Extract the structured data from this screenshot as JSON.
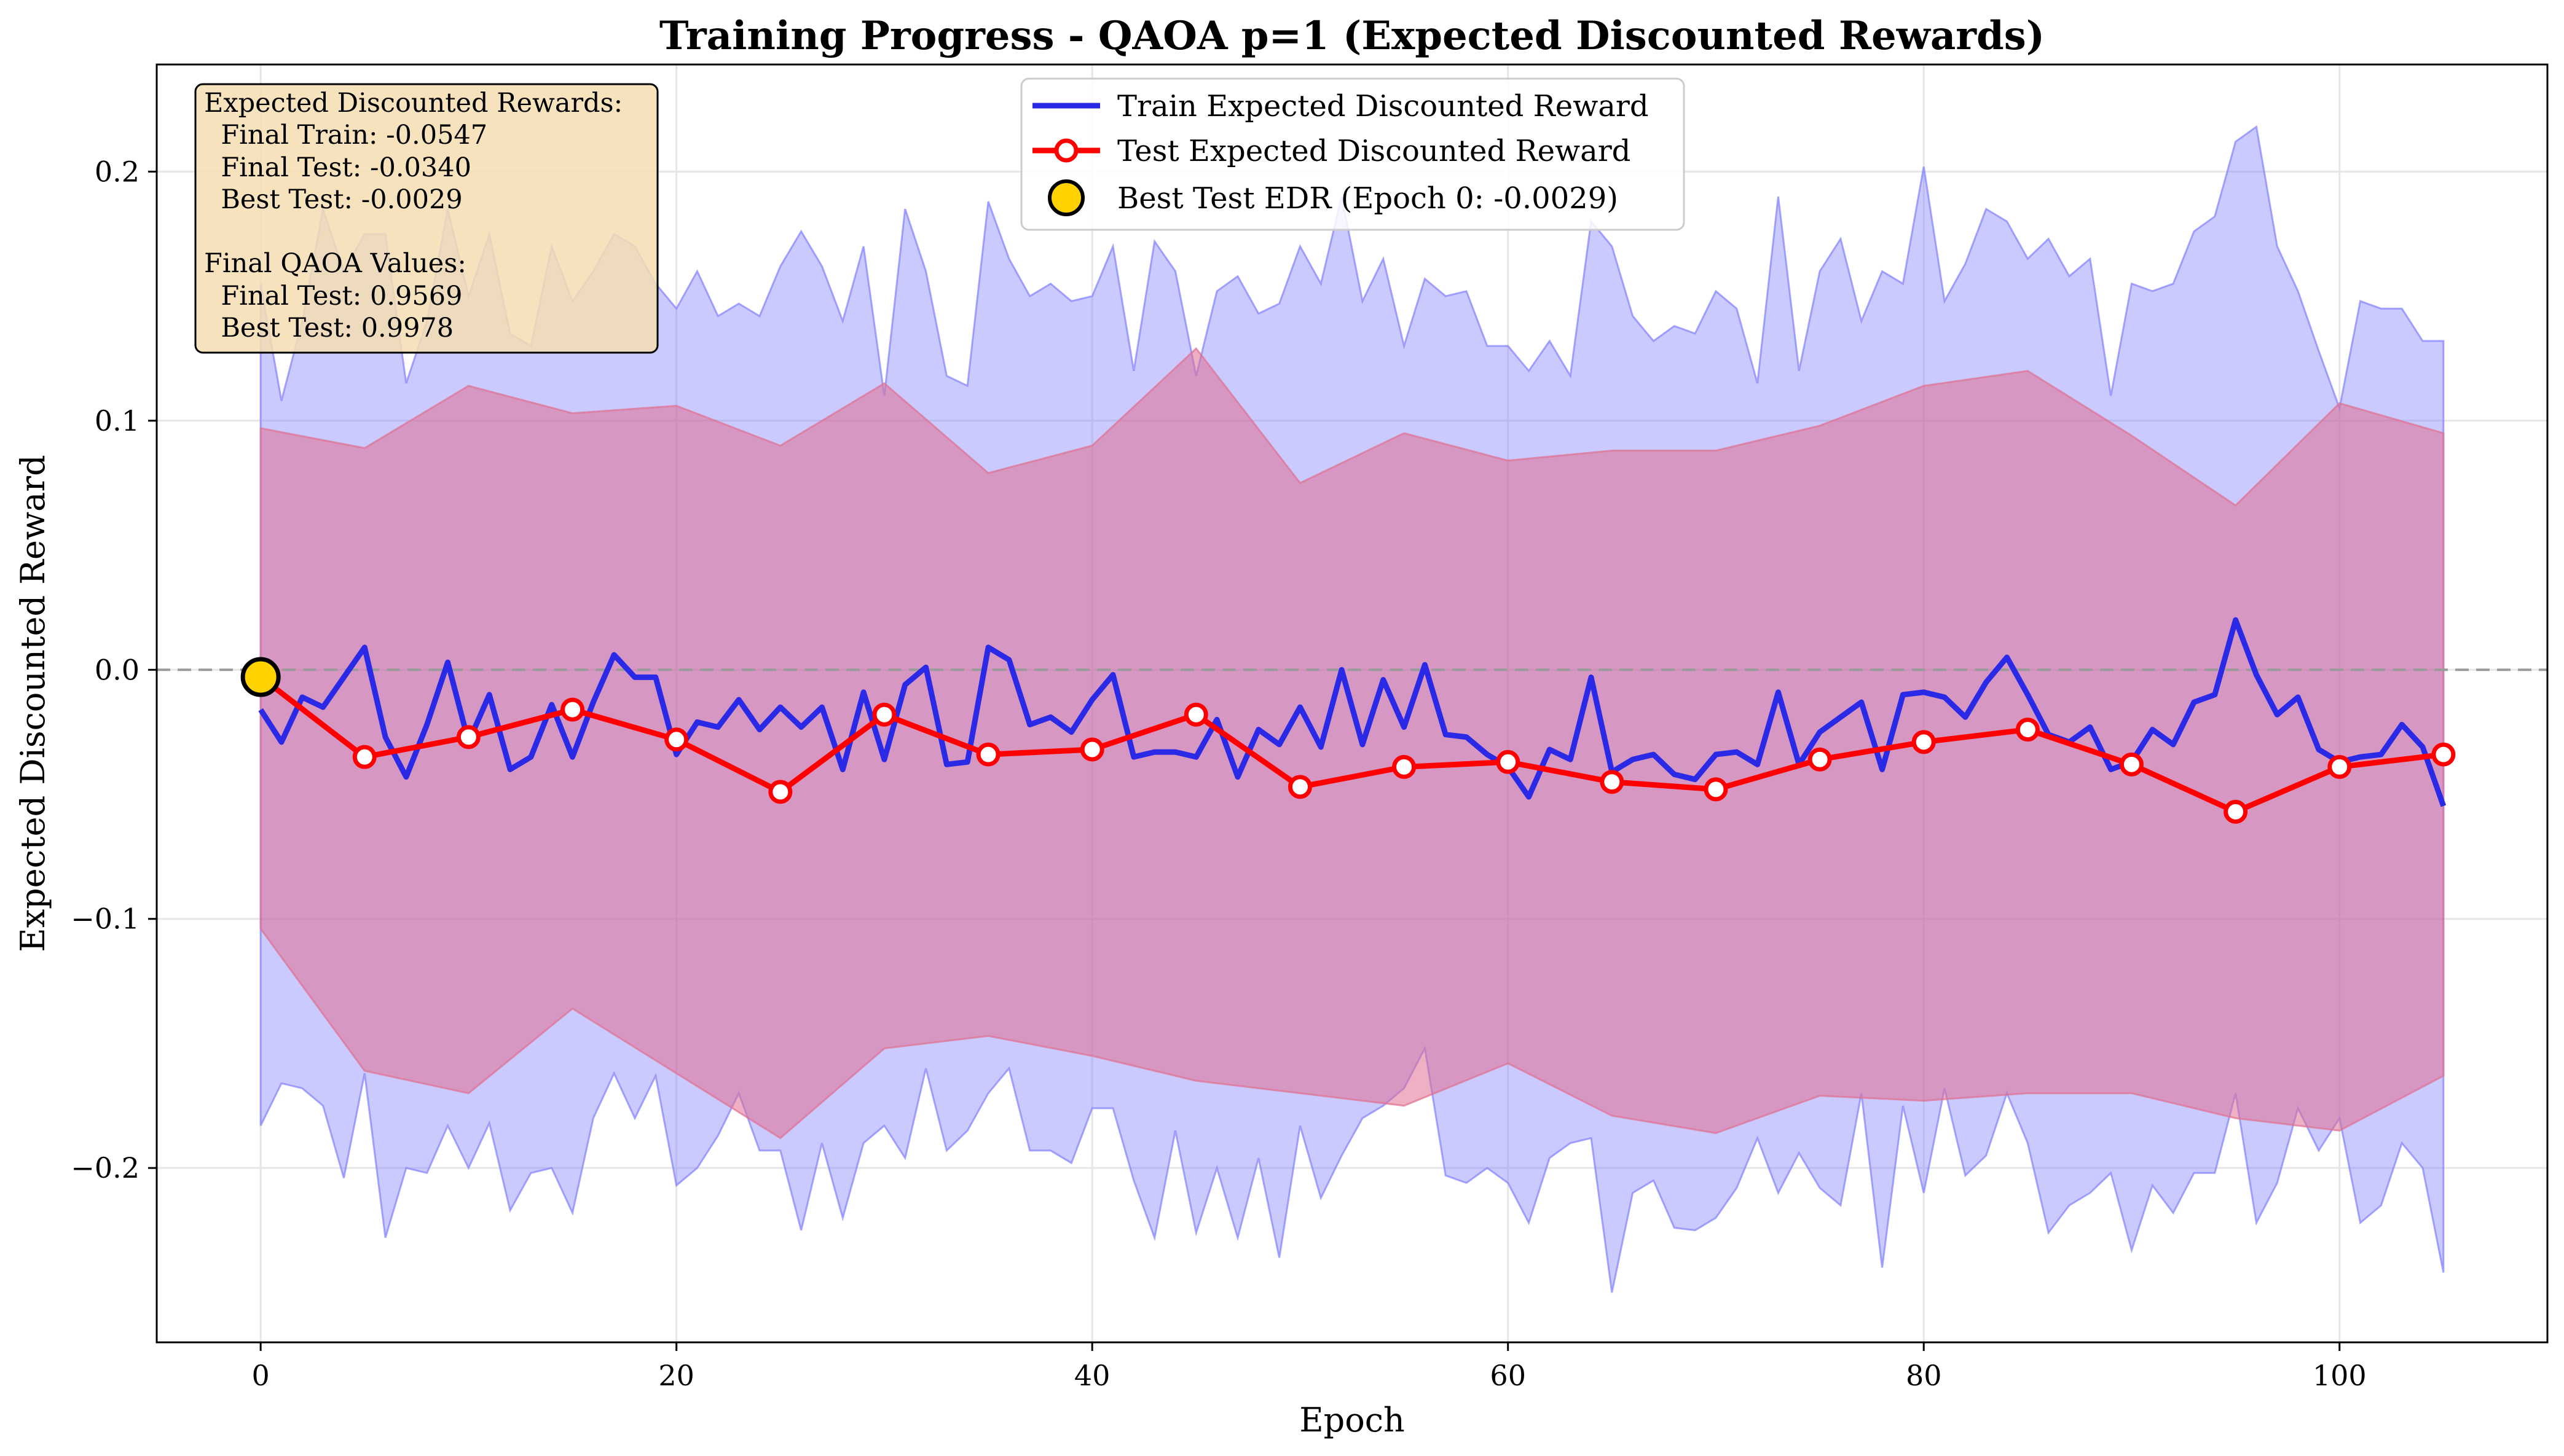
{
  "chart_data": {
    "type": "line",
    "title": "Training Progress - QAOA p=1 (Expected Discounted Rewards)",
    "xlabel": "Epoch",
    "ylabel": "Expected Discounted Reward",
    "xlim": [
      -5,
      110
    ],
    "ylim": [
      -0.27,
      0.243
    ],
    "xticks": [
      0,
      20,
      40,
      60,
      80,
      100
    ],
    "yticks": [
      -0.2,
      -0.1,
      0.0,
      0.1,
      0.2
    ],
    "ytick_labels": [
      "−0.2",
      "−0.1",
      "0.0",
      "0.1",
      "0.2"
    ],
    "grid": true,
    "reference_line": 0.0,
    "legend_position": "top-center",
    "legend": {
      "train": "Train Expected Discounted Reward",
      "test": "Test Expected Discounted Reward",
      "best": "Best Test EDR (Epoch 0: -0.0029)"
    },
    "stats_box": {
      "position": "top-left",
      "lines": [
        "Expected Discounted Rewards:",
        "  Final Train: -0.0547",
        "  Final Test: -0.0340",
        "  Best Test: -0.0029",
        "",
        "Final QAOA Values:",
        "  Final Test: 0.9569",
        "  Best Test: 0.9978"
      ]
    },
    "colors": {
      "train": "#2a2ae6",
      "test": "#ff0000",
      "train_band": "#8080ff",
      "test_band": "#e07090",
      "best_marker": "#ffd200",
      "stats_bg": "#f5deb3",
      "grid": "#e6e6e6",
      "zero_line": "#9a9a9a"
    },
    "series": [
      {
        "name": "Train Expected Discounted Reward",
        "x": [
          0,
          1,
          2,
          3,
          4,
          5,
          6,
          7,
          8,
          9,
          10,
          11,
          12,
          13,
          14,
          15,
          16,
          17,
          18,
          19,
          20,
          21,
          22,
          23,
          24,
          25,
          26,
          27,
          28,
          29,
          30,
          31,
          32,
          33,
          34,
          35,
          36,
          37,
          38,
          39,
          40,
          41,
          42,
          43,
          44,
          45,
          46,
          47,
          48,
          49,
          50,
          51,
          52,
          53,
          54,
          55,
          56,
          57,
          58,
          59,
          60,
          61,
          62,
          63,
          64,
          65,
          66,
          67,
          68,
          69,
          70,
          71,
          72,
          73,
          74,
          75,
          76,
          77,
          78,
          79,
          80,
          81,
          82,
          83,
          84,
          85,
          86,
          87,
          88,
          89,
          90,
          91,
          92,
          93,
          94,
          95,
          96,
          97,
          98,
          99,
          100,
          101,
          102,
          103,
          104,
          105
        ],
        "y": [
          -0.016,
          -0.029,
          -0.011,
          -0.015,
          -0.003,
          0.009,
          -0.027,
          -0.043,
          -0.022,
          0.003,
          -0.029,
          -0.01,
          -0.04,
          -0.035,
          -0.014,
          -0.035,
          -0.013,
          0.006,
          -0.003,
          -0.003,
          -0.034,
          -0.021,
          -0.023,
          -0.012,
          -0.024,
          -0.015,
          -0.023,
          -0.015,
          -0.04,
          -0.009,
          -0.036,
          -0.006,
          0.001,
          -0.038,
          -0.037,
          0.009,
          0.004,
          -0.022,
          -0.019,
          -0.025,
          -0.012,
          -0.002,
          -0.035,
          -0.033,
          -0.033,
          -0.035,
          -0.02,
          -0.043,
          -0.024,
          -0.03,
          -0.015,
          -0.031,
          0.0,
          -0.03,
          -0.004,
          -0.023,
          0.002,
          -0.026,
          -0.027,
          -0.034,
          -0.039,
          -0.051,
          -0.032,
          -0.036,
          -0.003,
          -0.041,
          -0.036,
          -0.034,
          -0.042,
          -0.044,
          -0.034,
          -0.033,
          -0.038,
          -0.009,
          -0.038,
          -0.025,
          -0.019,
          -0.013,
          -0.04,
          -0.01,
          -0.009,
          -0.011,
          -0.019,
          -0.005,
          0.005,
          -0.01,
          -0.026,
          -0.029,
          -0.023,
          -0.04,
          -0.037,
          -0.024,
          -0.03,
          -0.013,
          -0.01,
          0.02,
          -0.002,
          -0.018,
          -0.011,
          -0.032,
          -0.037,
          -0.035,
          -0.034,
          -0.022,
          -0.031,
          -0.0547
        ]
      },
      {
        "name": "Test Expected Discounted Reward",
        "x": [
          0,
          5,
          10,
          15,
          20,
          25,
          30,
          35,
          40,
          45,
          50,
          55,
          60,
          65,
          70,
          75,
          80,
          85,
          90,
          95,
          100,
          105
        ],
        "y": [
          -0.0029,
          -0.035,
          -0.027,
          -0.016,
          -0.028,
          -0.049,
          -0.018,
          -0.034,
          -0.032,
          -0.018,
          -0.047,
          -0.039,
          -0.037,
          -0.045,
          -0.048,
          -0.036,
          -0.029,
          -0.024,
          -0.038,
          -0.057,
          -0.039,
          -0.034
        ]
      }
    ],
    "bands": [
      {
        "of": "Train Expected Discounted Reward",
        "upper": [
          0.155,
          0.108,
          0.14,
          0.185,
          0.16,
          0.175,
          0.175,
          0.115,
          0.14,
          0.185,
          0.15,
          0.175,
          0.135,
          0.13,
          0.17,
          0.148,
          0.16,
          0.175,
          0.17,
          0.155,
          0.145,
          0.16,
          0.142,
          0.147,
          0.142,
          0.162,
          0.176,
          0.162,
          0.14,
          0.17,
          0.11,
          0.185,
          0.16,
          0.118,
          0.114,
          0.188,
          0.165,
          0.15,
          0.155,
          0.148,
          0.15,
          0.17,
          0.12,
          0.172,
          0.16,
          0.118,
          0.152,
          0.158,
          0.143,
          0.147,
          0.17,
          0.155,
          0.19,
          0.148,
          0.165,
          0.13,
          0.157,
          0.15,
          0.152,
          0.13,
          0.13,
          0.12,
          0.132,
          0.118,
          0.18,
          0.17,
          0.142,
          0.132,
          0.138,
          0.135,
          0.152,
          0.145,
          0.115,
          0.19,
          0.12,
          0.16,
          0.173,
          0.14,
          0.16,
          0.155,
          0.202,
          0.148,
          0.163,
          0.185,
          0.18,
          0.165,
          0.173,
          0.158,
          0.165,
          0.11,
          0.155,
          0.152,
          0.155,
          0.176,
          0.182,
          0.212,
          0.218,
          0.17,
          0.152,
          0.128,
          0.105,
          0.148,
          0.145,
          0.145,
          0.132,
          0.132
        ],
        "lower": [
          -0.183,
          -0.166,
          -0.168,
          -0.175,
          -0.204,
          -0.162,
          -0.228,
          -0.2,
          -0.202,
          -0.183,
          -0.2,
          -0.182,
          -0.217,
          -0.202,
          -0.2,
          -0.218,
          -0.18,
          -0.162,
          -0.18,
          -0.163,
          -0.207,
          -0.2,
          -0.187,
          -0.17,
          -0.193,
          -0.193,
          -0.225,
          -0.19,
          -0.22,
          -0.19,
          -0.183,
          -0.196,
          -0.16,
          -0.193,
          -0.185,
          -0.17,
          -0.16,
          -0.193,
          -0.193,
          -0.198,
          -0.176,
          -0.176,
          -0.205,
          -0.228,
          -0.185,
          -0.226,
          -0.2,
          -0.228,
          -0.196,
          -0.236,
          -0.183,
          -0.212,
          -0.195,
          -0.18,
          -0.175,
          -0.168,
          -0.152,
          -0.203,
          -0.206,
          -0.2,
          -0.206,
          -0.222,
          -0.196,
          -0.19,
          -0.188,
          -0.25,
          -0.21,
          -0.205,
          -0.224,
          -0.225,
          -0.22,
          -0.208,
          -0.188,
          -0.21,
          -0.194,
          -0.208,
          -0.215,
          -0.17,
          -0.24,
          -0.175,
          -0.21,
          -0.168,
          -0.203,
          -0.195,
          -0.17,
          -0.19,
          -0.226,
          -0.215,
          -0.21,
          -0.202,
          -0.233,
          -0.207,
          -0.218,
          -0.202,
          -0.202,
          -0.17,
          -0.222,
          -0.206,
          -0.176,
          -0.193,
          -0.18,
          -0.222,
          -0.215,
          -0.19,
          -0.2,
          -0.242
        ]
      },
      {
        "of": "Test Expected Discounted Reward",
        "upper": [
          0.097,
          0.089,
          0.114,
          0.103,
          0.106,
          0.09,
          0.115,
          0.079,
          0.09,
          0.129,
          0.075,
          0.095,
          0.084,
          0.088,
          0.088,
          0.098,
          0.114,
          0.12,
          0.094,
          0.066,
          0.107,
          0.095
        ],
        "lower": [
          -0.104,
          -0.161,
          -0.17,
          -0.136,
          -0.162,
          -0.188,
          -0.152,
          -0.147,
          -0.155,
          -0.165,
          -0.17,
          -0.175,
          -0.158,
          -0.179,
          -0.186,
          -0.171,
          -0.173,
          -0.17,
          -0.17,
          -0.18,
          -0.185,
          -0.163
        ]
      }
    ],
    "best_point": {
      "x": 0,
      "y": -0.0029
    }
  }
}
